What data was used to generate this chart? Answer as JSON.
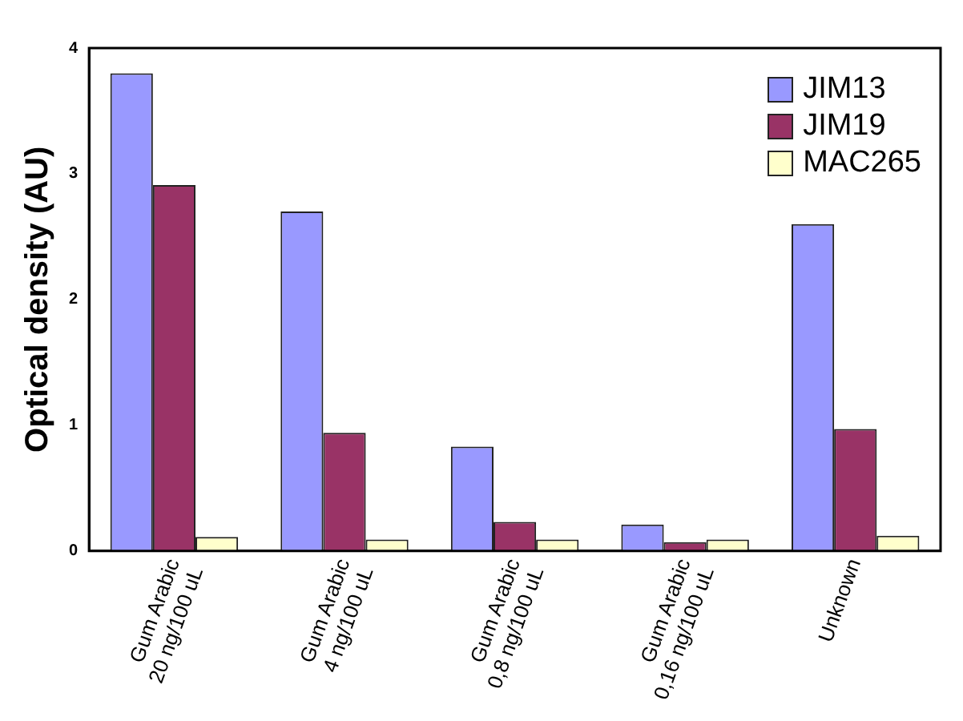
{
  "chart_data": {
    "type": "bar",
    "ylabel": "Optical density (AU)",
    "categories": [
      "Gum Arabic\n20 ng/100 uL",
      "Gum Arabic\n4 ng/100 uL",
      "Gum Arabic\n0,8 ng/100 uL",
      "Gum Arabic\n0,16 ng/100 uL",
      "Unknown"
    ],
    "series": [
      {
        "name": "JIM13",
        "color": "#9999ff",
        "values": [
          3.8,
          2.7,
          0.83,
          0.21,
          2.6
        ]
      },
      {
        "name": "JIM19",
        "color": "#993366",
        "values": [
          2.91,
          0.94,
          0.23,
          0.07,
          0.97
        ]
      },
      {
        "name": "MAC265",
        "color": "#ffffcc",
        "values": [
          0.11,
          0.09,
          0.09,
          0.09,
          0.12
        ]
      }
    ],
    "ylim": [
      0,
      4
    ],
    "yticks": [
      0,
      1,
      2,
      3,
      4
    ],
    "grid": false,
    "legend": "top right"
  }
}
